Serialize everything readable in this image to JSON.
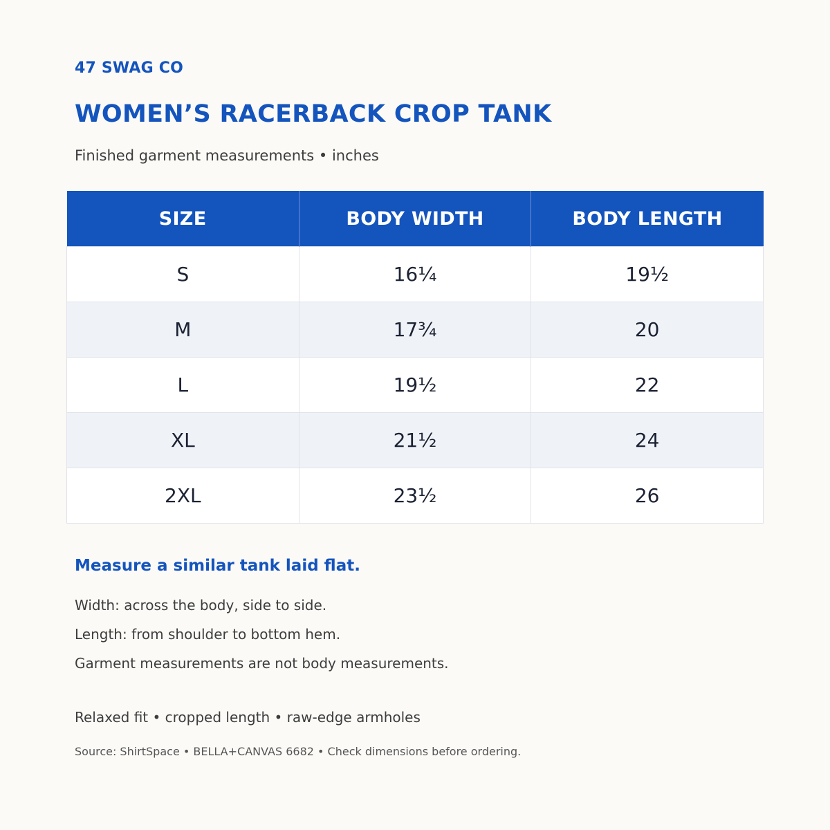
{
  "brand": "47 SWAG CO",
  "title": "WOMEN’S RACERBACK CROP TANK",
  "subtitle": "Finished garment measurements • inches",
  "table": {
    "headers": [
      "SIZE",
      "BODY WIDTH",
      "BODY LENGTH"
    ],
    "rows": [
      [
        "S",
        "16¼",
        "19½"
      ],
      [
        "M",
        "17¾",
        "20"
      ],
      [
        "L",
        "19½",
        "22"
      ],
      [
        "XL",
        "21½",
        "24"
      ],
      [
        "2XL",
        "23½",
        "26"
      ]
    ]
  },
  "notes": {
    "heading": "Measure a similar tank laid flat.",
    "lines": [
      "Width: across the body, side to side.",
      "Length: from shoulder to bottom hem.",
      "Garment measurements are not body measurements."
    ],
    "fit": "Relaxed fit • cropped length • raw-edge armholes"
  },
  "source": "Source: ShirtSpace • BELLA+CANVAS 6682 • Check dimensions before ordering.",
  "colors": {
    "accent": "#1454bd",
    "alt_row": "#eff2f7",
    "background": "#fbfaf7"
  }
}
